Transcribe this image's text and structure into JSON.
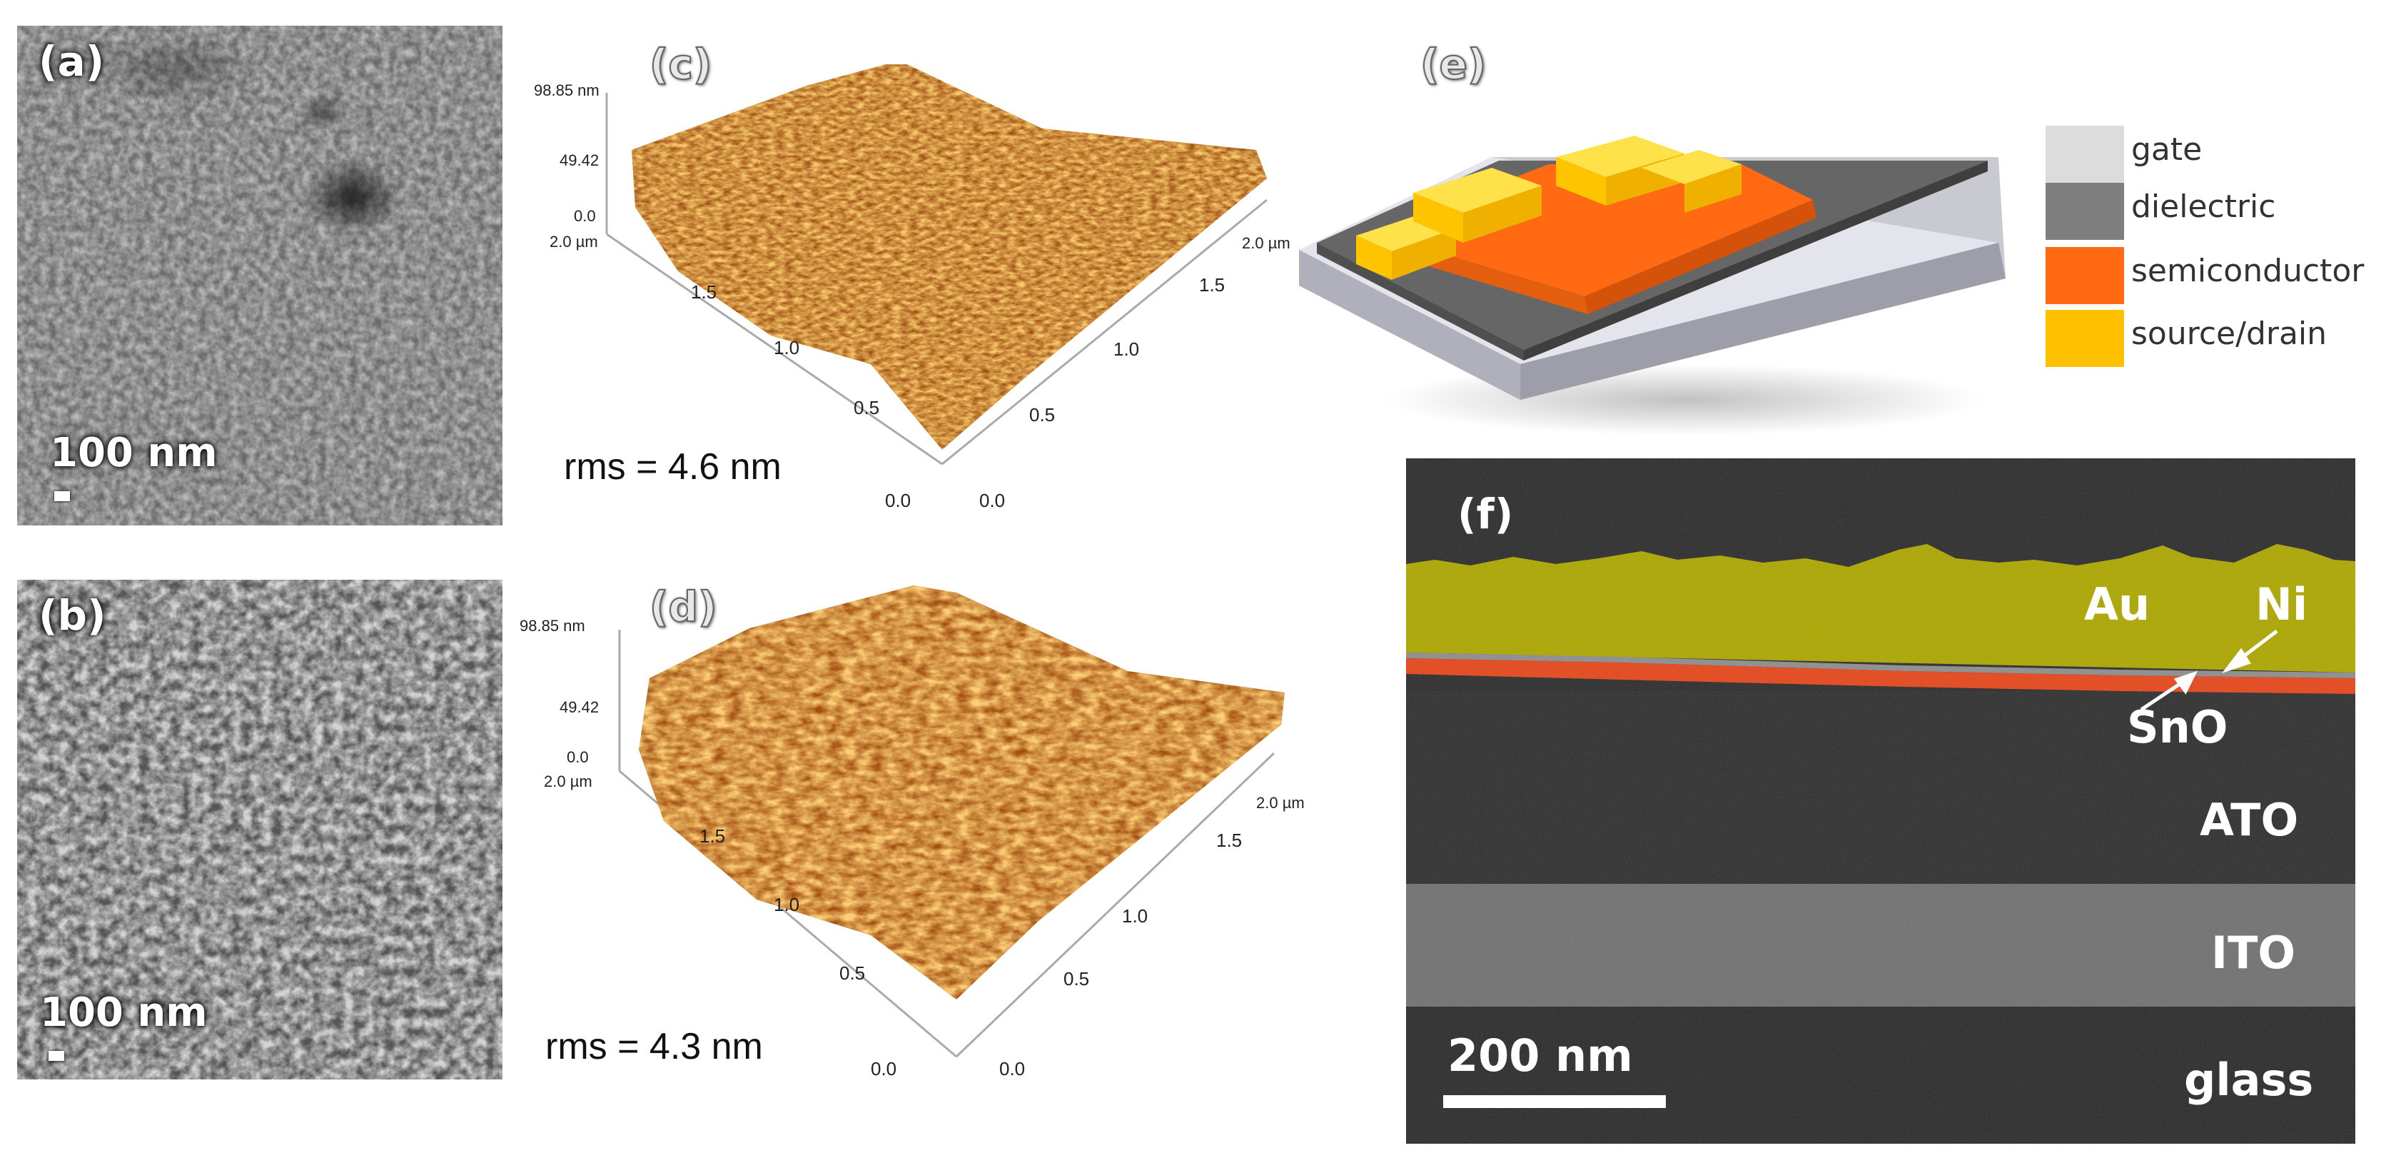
{
  "panels": {
    "a": {
      "label": "(a)",
      "scale_text": "100 nm"
    },
    "b": {
      "label": "(b)",
      "scale_text": "100 nm"
    },
    "c": {
      "label": "(c)",
      "z_ticks": [
        "98.85 nm",
        "49.42",
        "0.0"
      ],
      "y_top": "2.0 µm",
      "left_ticks": [
        "1.5",
        "1.0",
        "0.5",
        "0.0"
      ],
      "right_top": "2.0 µm",
      "right_ticks": [
        "1.5",
        "1.0",
        "0.5",
        "0.0"
      ],
      "rms": "rms = 4.6 nm"
    },
    "d": {
      "label": "(d)",
      "z_ticks": [
        "98.85 nm",
        "49.42",
        "0.0"
      ],
      "y_top": "2.0 µm",
      "left_ticks": [
        "1.5",
        "1.0",
        "0.5",
        "0.0"
      ],
      "right_top": "2.0 µm",
      "right_ticks": [
        "1.5",
        "1.0",
        "0.5",
        "0.0"
      ],
      "rms": "rms = 4.3 nm"
    },
    "e": {
      "label": "(e)",
      "legend": [
        {
          "name": "gate",
          "color": "#dcdcdc"
        },
        {
          "name": "dielectric",
          "color": "#7f7f7f"
        },
        {
          "name": "semiconductor",
          "color": "#ff6a13"
        },
        {
          "name": "source/drain",
          "color": "#ffc000"
        }
      ]
    },
    "f": {
      "label": "(f)",
      "layers": [
        "Au",
        "Ni",
        "SnO",
        "ATO",
        "ITO",
        "glass"
      ],
      "scale_text": "200 nm",
      "colors": {
        "au": "#a9a300",
        "sno": "#e0451a",
        "ato": "#2e2e2e",
        "ito": "#6e6e6e",
        "glass": "#2a2a2a"
      }
    }
  }
}
